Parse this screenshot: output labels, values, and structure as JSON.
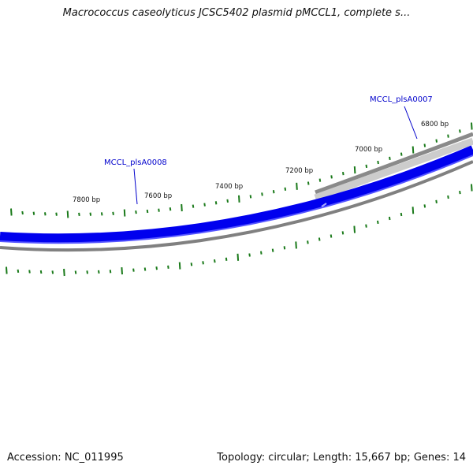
{
  "map": {
    "title": "Macrococcus caseolyticus JCSC5402 plasmid pMCCL1, complete s...",
    "accession_text": "Accession: NC_011995",
    "summary_text": "Topology: circular; Length: 15,667 bp; Genes: 14"
  },
  "sequence": {
    "length_bp": 15667,
    "topology": "circular",
    "gene_count": 14
  },
  "ruler_labels": [
    {
      "bp": 6800,
      "text": "6800 bp"
    },
    {
      "bp": 7000,
      "text": "7000 bp"
    },
    {
      "bp": 7200,
      "text": "7200 bp"
    },
    {
      "bp": 7400,
      "text": "7400 bp"
    },
    {
      "bp": 7600,
      "text": "7600 bp"
    },
    {
      "bp": 7800,
      "text": "7800 bp"
    }
  ],
  "genes": [
    {
      "id": "MCCL_plsA0007",
      "label": "MCCL_plsA0007"
    },
    {
      "id": "MCCL_plsA0008",
      "label": "MCCL_plsA0008"
    }
  ],
  "colors": {
    "backbone": "#0000ee",
    "backbone_highlight": "#5555ff",
    "feature_gray": "#8a8a8a",
    "feature_light": "#cccccc",
    "tick": "#1a7a1a",
    "gene_label": "#0000cc"
  }
}
